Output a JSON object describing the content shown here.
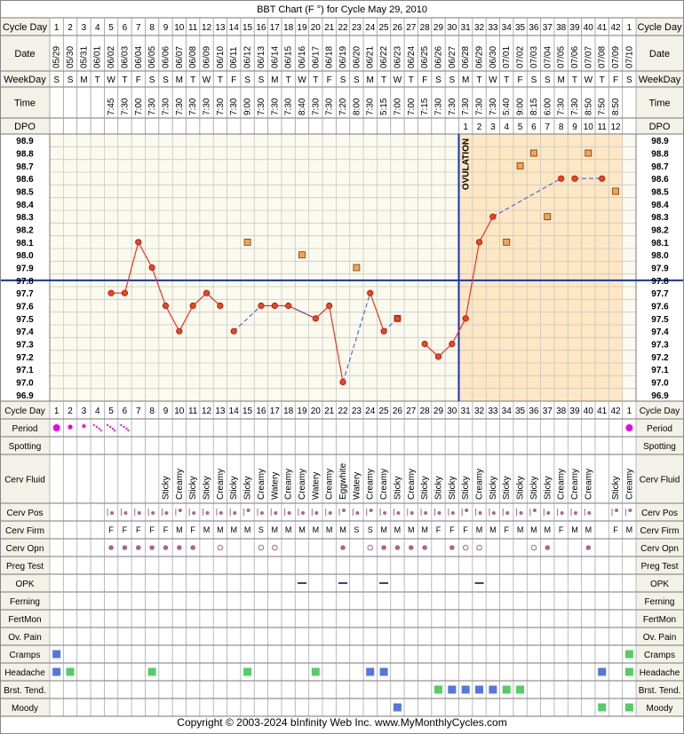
{
  "title": "BBT Chart (F °) for Cycle May 29, 2010",
  "footer": "Copyright © 2003-2024 bInfinity Web Inc.     www.MyMonthlyCycles.com",
  "ovulation_label": "OVULATION",
  "colors": {
    "header_fill": "#f2f2e8",
    "grid_bg": "#fbfaee",
    "luteal_bg": "#fde7c4",
    "grid_line": "#c9c9c0",
    "coverline": "#1a33b0",
    "line": "#ee3322",
    "dash": "#3355dd",
    "point_fill": "#ee4422",
    "point_stroke": "#aa1100",
    "square_fill": "#f2a455",
    "period": "#ee00ee",
    "blue_symptom": "#5577dd",
    "green_symptom": "#55cc66",
    "opk": "#553388",
    "cervix_marker": "#aa6688"
  },
  "labels": {
    "cycle_day": "Cycle Day",
    "date": "Date",
    "weekday": "WeekDay",
    "time": "Time",
    "dpo": "DPO"
  },
  "cycle_days": [
    "1",
    "2",
    "3",
    "4",
    "5",
    "6",
    "7",
    "8",
    "9",
    "10",
    "11",
    "12",
    "13",
    "14",
    "15",
    "16",
    "17",
    "18",
    "19",
    "20",
    "21",
    "22",
    "23",
    "24",
    "25",
    "26",
    "27",
    "28",
    "29",
    "30",
    "31",
    "32",
    "33",
    "34",
    "35",
    "36",
    "37",
    "38",
    "39",
    "40",
    "41",
    "42",
    "1"
  ],
  "dates": [
    "05/29",
    "05/30",
    "05/31",
    "06/01",
    "06/02",
    "06/03",
    "06/04",
    "06/05",
    "06/06",
    "06/07",
    "06/08",
    "06/09",
    "06/10",
    "06/11",
    "06/12",
    "06/13",
    "06/14",
    "06/15",
    "06/16",
    "06/17",
    "06/18",
    "06/19",
    "06/20",
    "06/21",
    "06/22",
    "06/23",
    "06/24",
    "06/25",
    "06/26",
    "06/27",
    "06/28",
    "06/29",
    "06/30",
    "07/01",
    "07/02",
    "07/03",
    "07/04",
    "07/05",
    "07/06",
    "07/07",
    "07/08",
    "07/09",
    "07/10"
  ],
  "weekdays": [
    "S",
    "S",
    "M",
    "T",
    "W",
    "T",
    "F",
    "S",
    "S",
    "M",
    "T",
    "W",
    "T",
    "F",
    "S",
    "S",
    "M",
    "T",
    "W",
    "T",
    "F",
    "S",
    "S",
    "M",
    "T",
    "W",
    "T",
    "F",
    "S",
    "S",
    "M",
    "T",
    "W",
    "T",
    "F",
    "S",
    "S",
    "M",
    "T",
    "W",
    "T",
    "F",
    "S"
  ],
  "times": [
    "",
    "",
    "",
    "",
    "7:45",
    "7:30",
    "7:00",
    "7:30",
    "7:30",
    "7:30",
    "7:30",
    "7:30",
    "7:30",
    "7:30",
    "9:00",
    "7:30",
    "7:30",
    "7:30",
    "8:40",
    "7:30",
    "7:30",
    "7:20",
    "8:00",
    "7:30",
    "5:15",
    "7:00",
    "7:00",
    "7:15",
    "7:30",
    "7:30",
    "7:30",
    "7:30",
    "7:30",
    "5:40",
    "9:00",
    "8:15",
    "6:00",
    "7:30",
    "7:30",
    "8:50",
    "7:50",
    "8:50",
    ""
  ],
  "dpo": [
    "",
    "",
    "",
    "",
    "",
    "",
    "",
    "",
    "",
    "",
    "",
    "",
    "",
    "",
    "",
    "",
    "",
    "",
    "",
    "",
    "",
    "",
    "",
    "",
    "",
    "",
    "",
    "",
    "",
    "",
    "1",
    "2",
    "3",
    "4",
    "5",
    "6",
    "7",
    "8",
    "9",
    "10",
    "11",
    "12",
    ""
  ],
  "chart_data": {
    "type": "line",
    "title": "BBT Chart (F °) for Cycle May 29, 2010",
    "xlabel": "Cycle Day",
    "ylabel": "",
    "ylim": [
      96.9,
      98.9
    ],
    "y_ticks": [
      "98.9",
      "98.8",
      "98.7",
      "98.6",
      "98.5",
      "98.4",
      "98.3",
      "98.2",
      "98.1",
      "98.0",
      "97.9",
      "97.8",
      "97.7",
      "97.6",
      "97.5",
      "97.4",
      "97.3",
      "97.2",
      "97.1",
      "97.0",
      "96.9"
    ],
    "coverline": 97.8,
    "ovulation_day": 30,
    "series": [
      {
        "kind": "charted",
        "points": [
          [
            5,
            97.7
          ],
          [
            6,
            97.7
          ],
          [
            7,
            98.1
          ],
          [
            8,
            97.9
          ],
          [
            9,
            97.6
          ],
          [
            10,
            97.4
          ],
          [
            11,
            97.6
          ],
          [
            12,
            97.7
          ],
          [
            13,
            97.6
          ],
          [
            14,
            97.4
          ],
          [
            16,
            97.6
          ],
          [
            17,
            97.6
          ],
          [
            18,
            97.6
          ],
          [
            20,
            97.5
          ],
          [
            21,
            97.6
          ],
          [
            22,
            97.0
          ],
          [
            24,
            97.7
          ],
          [
            25,
            97.4
          ],
          [
            26,
            97.5
          ],
          [
            28,
            97.3
          ],
          [
            29,
            97.2
          ],
          [
            30,
            97.3
          ],
          [
            31,
            97.5
          ],
          [
            32,
            98.1
          ],
          [
            33,
            98.3
          ],
          [
            38,
            98.6
          ],
          [
            39,
            98.6
          ],
          [
            41,
            98.6
          ]
        ]
      },
      {
        "kind": "discarded",
        "points": [
          [
            15,
            98.1
          ],
          [
            19,
            98.0
          ],
          [
            23,
            97.9
          ],
          [
            26,
            97.5
          ],
          [
            34,
            98.1
          ],
          [
            35,
            98.7
          ],
          [
            36,
            98.8
          ],
          [
            37,
            98.3
          ],
          [
            40,
            98.8
          ],
          [
            42,
            98.5
          ]
        ]
      }
    ],
    "solid_segments": [
      [
        5,
        13
      ],
      [
        14,
        14
      ],
      [
        16,
        20
      ],
      [
        20,
        22
      ],
      [
        24,
        25
      ],
      [
        28,
        34
      ]
    ],
    "dashed_segments": [
      [
        13,
        14
      ],
      [
        17,
        19
      ],
      [
        21,
        22
      ],
      [
        22,
        24
      ],
      [
        25,
        27
      ],
      [
        24,
        27
      ],
      [
        34,
        35
      ]
    ]
  },
  "symptom_rows": [
    {
      "label": "Cycle Day",
      "kind": "cycleday"
    },
    {
      "label": "Period",
      "kind": "period",
      "marks": [
        [
          "1",
          "big"
        ],
        [
          "2",
          "med"
        ],
        [
          "3",
          "small"
        ],
        [
          "4",
          "dots4"
        ],
        [
          "5",
          "dots4"
        ],
        [
          "6",
          "dots4"
        ],
        [
          "43",
          "big"
        ]
      ]
    },
    {
      "label": "Spotting",
      "kind": "empty"
    },
    {
      "label": "Cerv Fluid",
      "kind": "text",
      "values": [
        "",
        "",
        "",
        "",
        "",
        "",
        "",
        "",
        "Sticky",
        "Creamy",
        "Sticky",
        "Sticky",
        "Creamy",
        "Sticky",
        "Sticky",
        "Creamy",
        "Watery",
        "Creamy",
        "Creamy",
        "Watery",
        "Creamy",
        "Eggwhite",
        "Watery",
        "Creamy",
        "Creamy",
        "Sticky",
        "Creamy",
        "Sticky",
        "Sticky",
        "Sticky",
        "Sticky",
        "Creamy",
        "Sticky",
        "Sticky",
        "Sticky",
        "Sticky",
        "Sticky",
        "Creamy",
        "Creamy",
        "Creamy",
        "",
        "Sticky",
        "Creamy"
      ]
    },
    {
      "label": "Cerv Pos",
      "kind": "pos"
    },
    {
      "label": "Cerv Firm",
      "kind": "letters",
      "values": [
        "",
        "",
        "",
        "",
        "F",
        "F",
        "F",
        "F",
        "F",
        "M",
        "F",
        "M",
        "M",
        "M",
        "M",
        "S",
        "M",
        "M",
        "M",
        "M",
        "M",
        "M",
        "S",
        "S",
        "M",
        "M",
        "M",
        "M",
        "F",
        "F",
        "F",
        "M",
        "M",
        "F",
        "M",
        "M",
        "M",
        "F",
        "M",
        "M",
        "",
        "F",
        "M"
      ]
    },
    {
      "label": "Cerv Opn",
      "kind": "opn",
      "values": [
        "",
        "",
        "",
        "",
        "c",
        "c",
        "c",
        "c",
        "c",
        "c",
        "c",
        "",
        "o",
        "",
        "",
        "o",
        "o",
        "",
        "",
        "",
        "",
        "c",
        "",
        "o",
        "c",
        "c",
        "c",
        "c",
        "",
        "c",
        "o",
        "o",
        "",
        "",
        "",
        "o",
        "c",
        "",
        "",
        "c",
        "",
        "",
        ""
      ]
    },
    {
      "label": "Preg Test",
      "kind": "empty"
    },
    {
      "label": "OPK",
      "kind": "opk",
      "days": [
        19,
        22,
        25,
        32
      ]
    },
    {
      "label": "Ferning",
      "kind": "empty"
    },
    {
      "label": "FertMon",
      "kind": "empty"
    },
    {
      "label": "Ov. Pain",
      "kind": "empty"
    },
    {
      "label": "Cramps",
      "kind": "squares",
      "marks": [
        [
          1,
          "blue"
        ],
        [
          43,
          "green"
        ]
      ]
    },
    {
      "label": "Headache",
      "kind": "squares",
      "marks": [
        [
          1,
          "blue"
        ],
        [
          2,
          "green"
        ],
        [
          8,
          "green"
        ],
        [
          15,
          "green"
        ],
        [
          20,
          "green"
        ],
        [
          24,
          "blue"
        ],
        [
          25,
          "blue"
        ],
        [
          41,
          "blue"
        ],
        [
          43,
          "green"
        ]
      ]
    },
    {
      "label": "Brst. Tend.",
      "kind": "squares",
      "marks": [
        [
          29,
          "green"
        ],
        [
          30,
          "blue"
        ],
        [
          31,
          "blue"
        ],
        [
          32,
          "blue"
        ],
        [
          33,
          "blue"
        ],
        [
          34,
          "green"
        ],
        [
          35,
          "green"
        ]
      ]
    },
    {
      "label": "Moody",
      "kind": "squares",
      "marks": [
        [
          26,
          "blue"
        ],
        [
          41,
          "green"
        ],
        [
          43,
          "green"
        ]
      ]
    }
  ]
}
